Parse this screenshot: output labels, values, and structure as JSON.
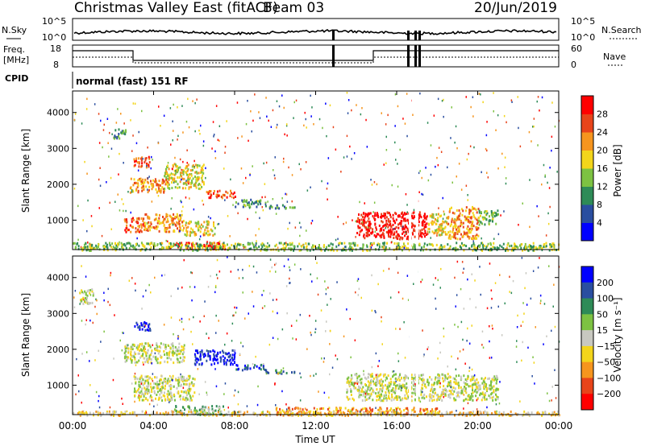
{
  "header": {
    "title": "Christmas Valley East (fitACF)",
    "beam": "Beam 03",
    "date": "20/Jun/2019"
  },
  "nsky_panel": {
    "left_label": "N.Sky",
    "right_label": "N.Search",
    "left_ticks": [
      "10^5",
      "10^0"
    ],
    "right_ticks": [
      "10^5",
      "10^0"
    ]
  },
  "freq_panel": {
    "left_label_1": "Freq.",
    "left_label_2": "[MHz]",
    "left_ticks": [
      "18",
      "8"
    ],
    "right_ticks": [
      "60",
      "0"
    ],
    "right_label": "Nave"
  },
  "cpid": {
    "label": "CPID",
    "value": "normal (fast) 151 RF"
  },
  "chart_data": [
    {
      "type": "heatmap",
      "name": "power",
      "xlabel": "Time UT",
      "ylabel": "Slant Range [km]",
      "colorbar_label": "Power [dB]",
      "x_ticks": [
        "00:00",
        "04:00",
        "08:00",
        "12:00",
        "16:00",
        "20:00",
        "00:00"
      ],
      "y_ticks": [
        1000,
        2000,
        3000,
        4000
      ],
      "xlim_hours": [
        0,
        24
      ],
      "ylim_km": [
        180,
        4600
      ],
      "colorbar_ticks": [
        4,
        8,
        12,
        16,
        20,
        24,
        28
      ],
      "colorbar_range": [
        0,
        32
      ],
      "colors": [
        "#0000ff",
        "#2a4ea0",
        "#2e8b57",
        "#7dc242",
        "#f3d51b",
        "#f6951e",
        "#e8441a",
        "#ff0000"
      ],
      "blobs": [
        {
          "t0": 2.0,
          "t1": 2.6,
          "r0": 3300,
          "r1": 3600,
          "v": 9
        },
        {
          "t0": 3.0,
          "t1": 3.8,
          "r0": 2500,
          "r1": 2800,
          "v": 22
        },
        {
          "t0": 2.8,
          "t1": 4.6,
          "r0": 1800,
          "r1": 2200,
          "v": 20
        },
        {
          "t0": 4.5,
          "t1": 6.5,
          "r0": 1900,
          "r1": 2600,
          "v": 14
        },
        {
          "t0": 6.5,
          "t1": 8.0,
          "r0": 1650,
          "r1": 1850,
          "v": 22
        },
        {
          "t0": 8.0,
          "t1": 9.5,
          "r0": 1400,
          "r1": 1600,
          "v": 6
        },
        {
          "t0": 9.5,
          "t1": 11.0,
          "r0": 1350,
          "r1": 1450,
          "v": 6
        },
        {
          "t0": 2.5,
          "t1": 3.5,
          "r0": 700,
          "r1": 1100,
          "v": 22
        },
        {
          "t0": 3.5,
          "t1": 5.5,
          "r0": 700,
          "r1": 1200,
          "v": 20
        },
        {
          "t0": 5.5,
          "t1": 7.0,
          "r0": 600,
          "r1": 1000,
          "v": 14
        },
        {
          "t0": 5.0,
          "t1": 7.5,
          "r0": 200,
          "r1": 400,
          "v": 26
        },
        {
          "t0": 14.0,
          "t1": 17.5,
          "r0": 500,
          "r1": 1250,
          "v": 26
        },
        {
          "t0": 17.5,
          "t1": 18.5,
          "r0": 600,
          "r1": 1200,
          "v": 14
        },
        {
          "t0": 18.5,
          "t1": 20.0,
          "r0": 500,
          "r1": 1400,
          "v": 20
        },
        {
          "t0": 20.0,
          "t1": 21.0,
          "r0": 900,
          "r1": 1300,
          "v": 12
        },
        {
          "t0": 0.0,
          "t1": 24.0,
          "r0": 180,
          "r1": 400,
          "v": 10
        }
      ]
    },
    {
      "type": "heatmap",
      "name": "velocity",
      "xlabel": "Time UT",
      "ylabel": "Slant Range [km]",
      "colorbar_label": "Velocity [m s⁻¹]",
      "x_ticks": [
        "00:00",
        "04:00",
        "08:00",
        "12:00",
        "16:00",
        "20:00",
        "00:00"
      ],
      "y_ticks": [
        1000,
        2000,
        3000,
        4000
      ],
      "xlim_hours": [
        0,
        24
      ],
      "ylim_km": [
        180,
        4600
      ],
      "colorbar_ticks": [
        "200",
        "100",
        "50",
        "15",
        "−15",
        "−50",
        "−100",
        "−200"
      ],
      "colors": [
        "#0000ff",
        "#2a4ea0",
        "#2e8b57",
        "#7dc242",
        "#c8c8c0",
        "#f3d51b",
        "#f6951e",
        "#e8441a",
        "#ff0000"
      ],
      "blobs": [
        {
          "t0": 0.3,
          "t1": 1.0,
          "r0": 3300,
          "r1": 3700,
          "v": 4
        },
        {
          "t0": 3.0,
          "t1": 3.8,
          "r0": 2550,
          "r1": 2800,
          "v": 0
        },
        {
          "t0": 6.0,
          "t1": 8.0,
          "r0": 1600,
          "r1": 2000,
          "v": 0
        },
        {
          "t0": 8.0,
          "t1": 9.5,
          "r0": 1450,
          "r1": 1600,
          "v": 1
        },
        {
          "t0": 9.5,
          "t1": 11.0,
          "r0": 1350,
          "r1": 1450,
          "v": 2
        },
        {
          "t0": 2.5,
          "t1": 5.5,
          "r0": 1650,
          "r1": 2200,
          "v": 4
        },
        {
          "t0": 3.0,
          "t1": 6.0,
          "r0": 600,
          "r1": 1300,
          "v": 4
        },
        {
          "t0": 13.5,
          "t1": 18.5,
          "r0": 600,
          "r1": 1350,
          "v": 4
        },
        {
          "t0": 18.5,
          "t1": 21.0,
          "r0": 600,
          "r1": 1300,
          "v": 4
        },
        {
          "t0": 5.0,
          "t1": 7.5,
          "r0": 200,
          "r1": 450,
          "v": 3
        },
        {
          "t0": 10.0,
          "t1": 18.0,
          "r0": 200,
          "r1": 400,
          "v": 6
        },
        {
          "t0": 0.0,
          "t1": 24.0,
          "r0": 180,
          "r1": 300,
          "v": 5
        }
      ]
    }
  ]
}
